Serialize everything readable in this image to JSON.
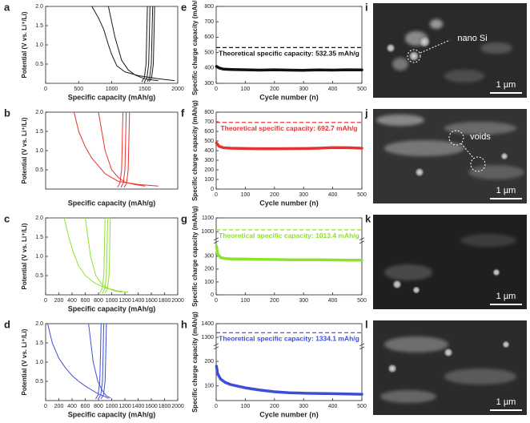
{
  "chart_data": [
    {
      "type": "line",
      "panel": "a",
      "xlabel": "Specific capacity (mAh/g)",
      "ylabel": "Potential (V vs. Li⁺/Li)",
      "xlim": [
        0,
        2000
      ],
      "xticks": [
        0,
        500,
        1000,
        1500,
        2000
      ],
      "ylim": [
        0,
        2.0
      ],
      "yticks": [
        0.5,
        {
          "value": 1,
          "label": "1.0"
        },
        1.5,
        {
          "value": 2,
          "label": "2.0"
        }
      ],
      "series": [
        {
          "color": "#1a1a1a",
          "x": [
            700,
            800,
            880,
            950,
            1000,
            1080,
            1200,
            1400,
            1700,
            1950
          ],
          "values": [
            2.0,
            1.7,
            1.4,
            1.0,
            0.75,
            0.45,
            0.3,
            0.2,
            0.12,
            0.07
          ]
        },
        {
          "color": "#1a1a1a",
          "x": [
            950,
            1050,
            1150,
            1250,
            1350,
            1450,
            1550,
            1700
          ],
          "values": [
            2.0,
            1.2,
            0.6,
            0.35,
            0.22,
            0.15,
            0.1,
            0.07
          ]
        },
        {
          "color": "#1a1a1a",
          "x": [
            1460,
            1495,
            1520,
            1530,
            1540
          ],
          "values": [
            0.05,
            0.15,
            0.5,
            1.2,
            2.0
          ]
        },
        {
          "color": "#1a1a1a",
          "x": [
            1500,
            1535,
            1560,
            1570,
            1580
          ],
          "values": [
            0.05,
            0.15,
            0.5,
            1.2,
            2.0
          ]
        },
        {
          "color": "#1a1a1a",
          "x": [
            1540,
            1575,
            1600,
            1610,
            1620
          ],
          "values": [
            0.05,
            0.15,
            0.5,
            1.2,
            2.0
          ]
        },
        {
          "color": "#1a1a1a",
          "x": [
            1570,
            1605,
            1630,
            1640,
            1650
          ],
          "values": [
            0.05,
            0.15,
            0.5,
            1.2,
            2.0
          ]
        }
      ]
    },
    {
      "type": "line",
      "panel": "e",
      "xlabel": "Cycle number (n)",
      "ylabel": "Specific charge capacity (mAh/g)",
      "xlim": [
        0,
        500
      ],
      "xticks": [
        0,
        100,
        200,
        300,
        400,
        500
      ],
      "ylim": [
        300,
        800
      ],
      "yticks": [
        300,
        400,
        500,
        600,
        700,
        800
      ],
      "reference": {
        "value": 532.35,
        "label": "Theoretical specific capacity: 532.35 mAh/g",
        "color": "#111111"
      },
      "series": [
        {
          "color": "#111111",
          "x": [
            1,
            10,
            25,
            50,
            100,
            150,
            200,
            250,
            300,
            350,
            400,
            450,
            500
          ],
          "values": [
            410,
            400,
            392,
            390,
            388,
            386,
            388,
            386,
            385,
            387,
            386,
            388,
            387
          ]
        }
      ]
    },
    {
      "type": "line",
      "panel": "b",
      "xlabel": "Specific capacity (mAh/g)",
      "ylabel": "Potential (V vs. Li⁺/Li)",
      "xlim": [
        0,
        2000
      ],
      "ylim": [
        0,
        2.0
      ],
      "yticks": [
        0.5,
        {
          "value": 1,
          "label": "1.0"
        },
        1.5,
        {
          "value": 2,
          "label": "2.0"
        }
      ],
      "series": [
        {
          "color": "#e8312f",
          "x": [
            430,
            500,
            600,
            700,
            800,
            900,
            1100,
            1400,
            1700
          ],
          "values": [
            2.0,
            1.5,
            1.1,
            0.8,
            0.6,
            0.4,
            0.2,
            0.12,
            0.08
          ]
        },
        {
          "color": "#e8312f",
          "x": [
            800,
            900,
            1000,
            1100,
            1200,
            1350,
            1500
          ],
          "values": [
            2.0,
            1.0,
            0.5,
            0.3,
            0.18,
            0.12,
            0.08
          ]
        },
        {
          "color": "#e8312f",
          "x": [
            1090,
            1125,
            1150,
            1160,
            1170
          ],
          "values": [
            0.05,
            0.15,
            0.5,
            1.2,
            2.0
          ]
        },
        {
          "color": "#e8312f",
          "x": [
            1140,
            1175,
            1200,
            1210,
            1220
          ],
          "values": [
            0.05,
            0.15,
            0.5,
            1.2,
            2.0
          ]
        },
        {
          "color": "#e8312f",
          "x": [
            1190,
            1225,
            1250,
            1260,
            1270
          ],
          "values": [
            0.05,
            0.15,
            0.5,
            1.2,
            2.0
          ]
        }
      ]
    },
    {
      "type": "line",
      "panel": "f",
      "xlabel": "Cycle number (n)",
      "ylabel": "Specific charge capacity (mAh/g)",
      "xlim": [
        0,
        500
      ],
      "xticks": [
        0,
        100,
        200,
        300,
        400,
        500
      ],
      "ylim": [
        0,
        800
      ],
      "yticks": [
        0,
        100,
        200,
        300,
        400,
        500,
        600,
        700,
        800
      ],
      "reference": {
        "value": 692.7,
        "label": "Theoretical specific capacity: 692.7 mAh/g",
        "color": "#e8312f"
      },
      "series": [
        {
          "color": "#e8312f",
          "x": [
            1,
            10,
            25,
            50,
            100,
            150,
            200,
            250,
            300,
            350,
            400,
            450,
            500
          ],
          "values": [
            480,
            445,
            430,
            425,
            422,
            420,
            420,
            421,
            422,
            425,
            432,
            430,
            425
          ]
        }
      ]
    },
    {
      "type": "line",
      "panel": "c",
      "xlabel": "Specific capacity (mAh/g)",
      "ylabel": "Potential (V vs. Li⁺/Li)",
      "xlim": [
        0,
        2000
      ],
      "xticks": [
        0,
        200,
        400,
        600,
        800,
        1000,
        1200,
        1400,
        1600,
        1800,
        2000
      ],
      "ylim": [
        0,
        2.0
      ],
      "yticks": [
        0.5,
        {
          "value": 1,
          "label": "1.0"
        },
        1.5,
        {
          "value": 2,
          "label": "2.0"
        }
      ],
      "series": [
        {
          "color": "#8ce22c",
          "x": [
            280,
            350,
            420,
            500,
            600,
            750,
            900,
            1100,
            1250
          ],
          "values": [
            2.0,
            1.5,
            1.1,
            0.75,
            0.5,
            0.3,
            0.18,
            0.1,
            0.07
          ]
        },
        {
          "color": "#8ce22c",
          "x": [
            600,
            680,
            760,
            850,
            950,
            1050,
            1150
          ],
          "values": [
            2.0,
            1.0,
            0.5,
            0.28,
            0.16,
            0.1,
            0.07
          ]
        },
        {
          "color": "#8ce22c",
          "x": [
            820,
            855,
            880,
            890,
            900
          ],
          "values": [
            0.05,
            0.15,
            0.5,
            1.2,
            2.0
          ]
        },
        {
          "color": "#8ce22c",
          "x": [
            860,
            895,
            920,
            930,
            940
          ],
          "values": [
            0.05,
            0.15,
            0.5,
            1.2,
            2.0
          ]
        },
        {
          "color": "#8ce22c",
          "x": [
            900,
            935,
            960,
            970,
            980
          ],
          "values": [
            0.05,
            0.15,
            0.5,
            1.2,
            2.0
          ]
        }
      ]
    },
    {
      "type": "line",
      "panel": "g",
      "ylabel": "Specific charge capacity (mAh/g)",
      "xlim": [
        0,
        500
      ],
      "xticks": [
        0,
        100,
        200,
        300,
        400,
        500
      ],
      "ylim": [
        0,
        1100
      ],
      "ybreak": [
        400,
        950
      ],
      "yticks": [
        0,
        100,
        200,
        300,
        1000,
        1100
      ],
      "reference": {
        "value": 1013.4,
        "label": "Theoretical specific capacity: 1013.4 mAh/g",
        "color": "#8ce22c"
      },
      "series": [
        {
          "color": "#8ce22c",
          "x": [
            1,
            5,
            15,
            30,
            50,
            100,
            150,
            200,
            250,
            300,
            350,
            400,
            450,
            500
          ],
          "values": [
            380,
            320,
            290,
            282,
            280,
            278,
            276,
            275,
            273,
            272,
            272,
            271,
            270,
            270
          ]
        }
      ]
    },
    {
      "type": "line",
      "panel": "d",
      "xlabel": "Specific capacity (mAh/g)",
      "ylabel": "Potential (V vs. Li⁺/Li)",
      "xlim": [
        0,
        2000
      ],
      "xticks": [
        0,
        200,
        400,
        600,
        800,
        1000,
        1200,
        1400,
        1600,
        1800,
        2000
      ],
      "ylim": [
        0,
        2.0
      ],
      "yticks": [
        0.5,
        {
          "value": 1,
          "label": "1.0"
        },
        1.5,
        {
          "value": 2,
          "label": "2.0"
        }
      ],
      "series": [
        {
          "color": "#3d4fd8",
          "x": [
            30,
            100,
            200,
            300,
            400,
            500,
            600,
            700,
            800,
            900,
            950
          ],
          "values": [
            2.0,
            1.5,
            1.1,
            0.85,
            0.65,
            0.5,
            0.38,
            0.27,
            0.17,
            0.1,
            0.06
          ]
        },
        {
          "color": "#3d4fd8",
          "x": [
            650,
            720,
            790,
            860,
            920,
            980
          ],
          "values": [
            2.0,
            1.0,
            0.5,
            0.25,
            0.12,
            0.07
          ]
        },
        {
          "color": "#3d4fd8",
          "x": [
            760,
            795,
            820,
            830,
            840
          ],
          "values": [
            0.05,
            0.15,
            0.5,
            1.2,
            2.0
          ]
        },
        {
          "color": "#3d4fd8",
          "x": [
            800,
            835,
            860,
            870,
            880
          ],
          "values": [
            0.05,
            0.15,
            0.5,
            1.2,
            2.0
          ]
        },
        {
          "color": "#3d4fd8",
          "x": [
            840,
            875,
            900,
            910,
            920
          ],
          "values": [
            0.05,
            0.15,
            0.5,
            1.2,
            2.0
          ]
        }
      ]
    },
    {
      "type": "line",
      "panel": "h",
      "xlabel": "Cycle number (n)",
      "ylabel": "Specific charge capacity (mAh/g)",
      "xlim": [
        0,
        500
      ],
      "xticks": [
        0,
        100,
        200,
        300,
        400,
        500
      ],
      "ylim": [
        40,
        1400
      ],
      "ybreak": [
        250,
        1250
      ],
      "yticks": [
        100,
        200,
        1300,
        1400
      ],
      "reference": {
        "value": 1334.1,
        "label": "Theoretical specific capacity: 1334.1 mAh/g",
        "color": "#3d4fd8"
      },
      "series": [
        {
          "color": "#3d4fd8",
          "x": [
            1,
            5,
            15,
            30,
            50,
            100,
            150,
            200,
            250,
            300,
            350,
            400,
            450,
            500
          ],
          "values": [
            180,
            150,
            128,
            115,
            105,
            92,
            83,
            76,
            72,
            70,
            69,
            68,
            67,
            66
          ]
        }
      ]
    }
  ],
  "images": [
    {
      "panel": "i",
      "annotation": "nano Si",
      "scale_bar": "1 µm"
    },
    {
      "panel": "j",
      "annotation": "voids",
      "scale_bar": "1 µm"
    },
    {
      "panel": "k",
      "scale_bar": "1 µm"
    },
    {
      "panel": "l",
      "scale_bar": "1 µm"
    }
  ]
}
